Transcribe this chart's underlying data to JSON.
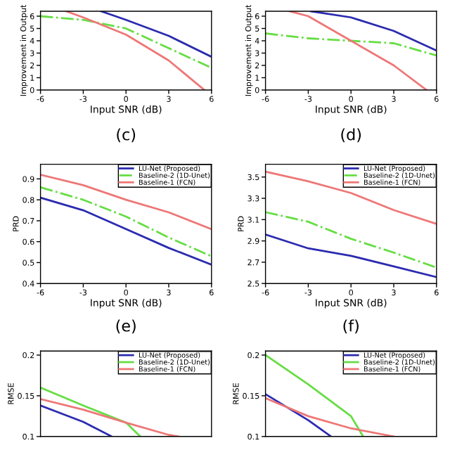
{
  "chart_data": [
    {
      "type": "line",
      "ylabel": "Improvement in Output",
      "xlabel": "Input SNR (dB)",
      "annotations": [
        "(c)"
      ],
      "xlim": [
        -6,
        6
      ],
      "xticks": [
        -6,
        -3,
        0,
        3,
        6
      ],
      "ylim": [
        0,
        6.4
      ],
      "yticks": [
        0,
        1,
        2,
        3,
        4,
        5,
        6
      ],
      "grid": false,
      "legend": false,
      "series": [
        {
          "color": "#2b2bb0",
          "line_style": "solid",
          "x": [
            -1.75,
            0,
            3,
            6
          ],
          "values": [
            6.4,
            5.7,
            4.4,
            2.7
          ]
        },
        {
          "color": "#66dd44",
          "line_style": "dashed",
          "x": [
            -6,
            -3,
            0,
            3,
            6
          ],
          "values": [
            6.0,
            5.7,
            5.0,
            3.4,
            1.8
          ]
        },
        {
          "color": "#ee7777",
          "line_style": "solid",
          "x": [
            -4.2,
            -3,
            0,
            3,
            5.5
          ],
          "values": [
            6.4,
            5.9,
            4.5,
            2.4,
            0
          ]
        }
      ]
    },
    {
      "type": "line",
      "ylabel": "Improvement in Output",
      "xlabel": "Input SNR (dB)",
      "annotations": [
        "(d)"
      ],
      "xlim": [
        -6,
        6
      ],
      "xticks": [
        -6,
        -3,
        0,
        3,
        6
      ],
      "ylim": [
        0,
        6.4
      ],
      "yticks": [
        0,
        1,
        2,
        3,
        4,
        5,
        6
      ],
      "grid": false,
      "legend": false,
      "series": [
        {
          "color": "#2b2bb0",
          "line_style": "solid",
          "x": [
            -2.8,
            0,
            3,
            6
          ],
          "values": [
            6.4,
            5.9,
            4.8,
            3.2
          ]
        },
        {
          "color": "#66dd44",
          "line_style": "dashed",
          "x": [
            -6,
            -3,
            0,
            3,
            6
          ],
          "values": [
            4.6,
            4.2,
            4.0,
            3.8,
            2.8
          ]
        },
        {
          "color": "#ee7777",
          "line_style": "solid",
          "x": [
            -4.3,
            -3,
            0,
            3,
            5.3
          ],
          "values": [
            6.4,
            6.0,
            4.0,
            2.0,
            0
          ]
        }
      ]
    },
    {
      "type": "line",
      "ylabel": "PRD",
      "xlabel": "Input SNR (dB)",
      "annotations": [
        "(e)"
      ],
      "xlim": [
        -6,
        6
      ],
      "xticks": [
        -6,
        -3,
        0,
        3,
        6
      ],
      "ylim": [
        0.4,
        0.97
      ],
      "yticks": [
        0.4,
        0.5,
        0.6,
        0.7,
        0.8,
        0.9
      ],
      "grid": false,
      "legend": "top right",
      "series": [
        {
          "name": "LU-Net (Proposed)",
          "color": "#2b2bb0",
          "line_style": "solid",
          "x": [
            -6,
            -3,
            0,
            3,
            6
          ],
          "values": [
            0.81,
            0.75,
            0.66,
            0.57,
            0.49
          ]
        },
        {
          "name": "Baseline-2 (1D-Unet)",
          "color": "#66dd44",
          "line_style": "dashed",
          "x": [
            -6,
            -3,
            0,
            3,
            6
          ],
          "values": [
            0.86,
            0.8,
            0.72,
            0.62,
            0.53
          ]
        },
        {
          "name": "Baseline-1 (FCN)",
          "color": "#ee7777",
          "line_style": "solid",
          "x": [
            -6,
            -3,
            0,
            3,
            6
          ],
          "values": [
            0.92,
            0.87,
            0.8,
            0.74,
            0.66
          ]
        }
      ]
    },
    {
      "type": "line",
      "ylabel": "PRD",
      "xlabel": "Input SNR (dB)",
      "annotations": [
        "(f)"
      ],
      "xlim": [
        -6,
        6
      ],
      "xticks": [
        -6,
        -3,
        0,
        3,
        6
      ],
      "ylim": [
        2.5,
        3.62
      ],
      "yticks": [
        2.5,
        2.7,
        2.9,
        3.1,
        3.3,
        3.5
      ],
      "grid": false,
      "legend": "top right",
      "series": [
        {
          "name": "LU-Net (Proposed)",
          "color": "#2b2bb0",
          "line_style": "solid",
          "x": [
            -6,
            -3,
            0,
            3,
            6
          ],
          "values": [
            2.96,
            2.83,
            2.76,
            2.66,
            2.56
          ]
        },
        {
          "name": "Baseline-2 (1D-Unet)",
          "color": "#66dd44",
          "line_style": "dashed",
          "x": [
            -6,
            -3,
            0,
            3,
            6
          ],
          "values": [
            3.17,
            3.08,
            2.92,
            2.79,
            2.65
          ]
        },
        {
          "name": "Baseline-1 (FCN)",
          "color": "#ee7777",
          "line_style": "solid",
          "x": [
            -6,
            -3,
            0,
            3,
            6
          ],
          "values": [
            3.55,
            3.46,
            3.35,
            3.19,
            3.06
          ]
        }
      ]
    },
    {
      "type": "line",
      "ylabel": "RMSE",
      "xlim": [
        -6,
        6
      ],
      "ylim": [
        0.1,
        0.205
      ],
      "yticks": [
        0.1,
        0.15,
        0.2
      ],
      "tick_labels": "y",
      "grid": false,
      "legend": "top right",
      "series": [
        {
          "name": "LU-Net (Proposed)",
          "color": "#2b2bb0",
          "line_style": "solid",
          "x": [
            -6,
            -3,
            -1
          ],
          "values": [
            0.138,
            0.118,
            0.1
          ]
        },
        {
          "name": "Baseline-2 (1D-Unet)",
          "color": "#66dd44",
          "line_style": "solid",
          "x": [
            -6,
            -3,
            0,
            1
          ],
          "values": [
            0.16,
            0.138,
            0.117,
            0.1
          ]
        },
        {
          "name": "Baseline-1 (FCN)",
          "color": "#ee7777",
          "line_style": "solid",
          "x": [
            -6,
            -3,
            0,
            3,
            3.7
          ],
          "values": [
            0.146,
            0.133,
            0.117,
            0.102,
            0.1
          ]
        }
      ]
    },
    {
      "type": "line",
      "ylabel": "RMSE",
      "xlim": [
        -6,
        6
      ],
      "ylim": [
        0.1,
        0.205
      ],
      "yticks": [
        0.1,
        0.15,
        0.2
      ],
      "tick_labels": "y",
      "grid": false,
      "legend": "top right",
      "series": [
        {
          "name": "LU-Net (Proposed)",
          "color": "#2b2bb0",
          "line_style": "solid",
          "x": [
            -6,
            -3,
            -1.4
          ],
          "values": [
            0.152,
            0.12,
            0.1
          ]
        },
        {
          "name": "Baseline-2 (1D-Unet)",
          "color": "#66dd44",
          "line_style": "solid",
          "x": [
            -6,
            -3,
            0,
            0.85
          ],
          "values": [
            0.2,
            0.164,
            0.125,
            0.1
          ]
        },
        {
          "name": "Baseline-1 (FCN)",
          "color": "#ee7777",
          "line_style": "solid",
          "x": [
            -6,
            -3,
            0,
            3
          ],
          "values": [
            0.147,
            0.125,
            0.11,
            0.1
          ]
        }
      ]
    }
  ]
}
